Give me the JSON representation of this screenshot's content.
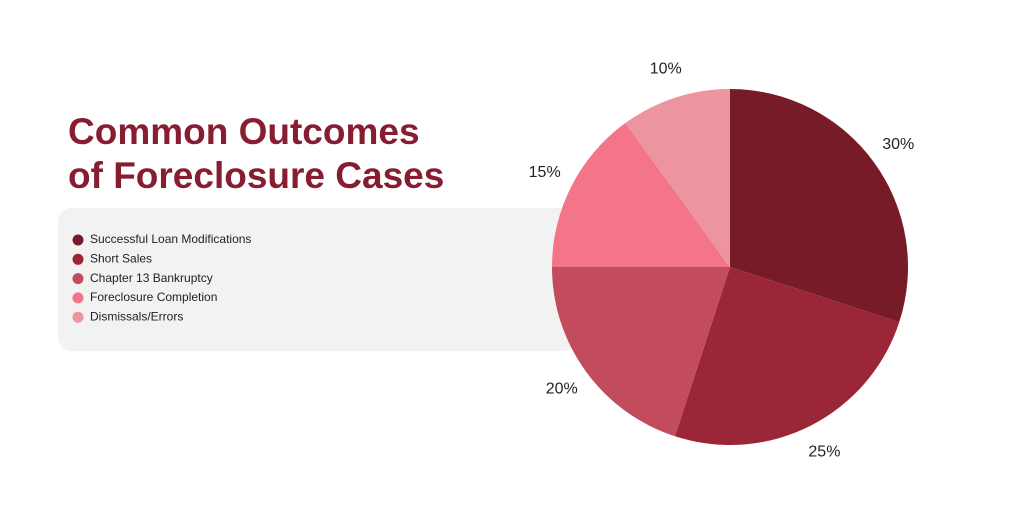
{
  "chart_data": {
    "type": "pie",
    "title": "Common Outcomes of Foreclosure Cases",
    "categories": [
      "Successful Loan Modifications",
      "Short Sales",
      "Chapter 13 Bankruptcy",
      "Foreclosure Completion",
      "Dismissals/Errors"
    ],
    "values": [
      30,
      25,
      20,
      15,
      10
    ],
    "value_labels": [
      "30%",
      "25%",
      "20%",
      "15%",
      "10%"
    ],
    "colors": [
      "#771b29",
      "#9b2638",
      "#c24b5c",
      "#f47587",
      "#ec95a0"
    ],
    "legend": "left"
  }
}
